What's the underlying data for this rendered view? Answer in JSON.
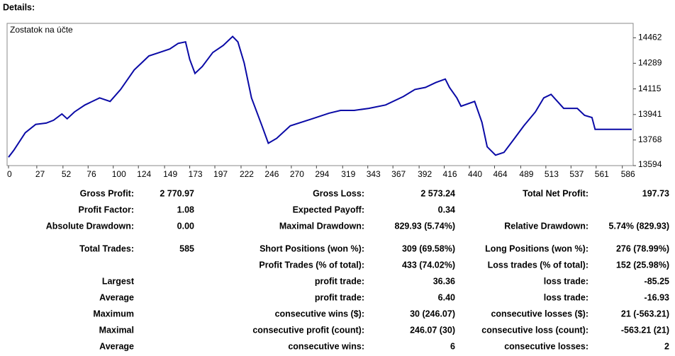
{
  "header": "Details:",
  "chart_data": {
    "type": "line",
    "title": "Zostatok na účte",
    "color": "#0a0aa6",
    "grid": false,
    "x": [
      0,
      5,
      16,
      26,
      36,
      43,
      51,
      56,
      63,
      73,
      87,
      97,
      107,
      120,
      127,
      134,
      144,
      154,
      162,
      169,
      173,
      178,
      185,
      195,
      205,
      214,
      219,
      225,
      232,
      242,
      248,
      256,
      269,
      290,
      306,
      317,
      330,
      344,
      360,
      377,
      388,
      398,
      408,
      417,
      421,
      428,
      432,
      445,
      452,
      457,
      465,
      473,
      482,
      492,
      503,
      511,
      518,
      530,
      543,
      550,
      557,
      560,
      580,
      595
    ],
    "values": [
      13651,
      13698,
      13817,
      13874,
      13883,
      13902,
      13945,
      13912,
      13959,
      14006,
      14054,
      14030,
      14111,
      14244,
      14291,
      14339,
      14362,
      14386,
      14424,
      14434,
      14315,
      14220,
      14267,
      14362,
      14410,
      14471,
      14434,
      14291,
      14054,
      13864,
      13746,
      13779,
      13864,
      13912,
      13950,
      13969,
      13969,
      13983,
      14006,
      14063,
      14111,
      14125,
      14158,
      14182,
      14125,
      14054,
      13997,
      14030,
      13888,
      13722,
      13665,
      13684,
      13769,
      13864,
      13959,
      14054,
      14078,
      13983,
      13983,
      13935,
      13921,
      13840,
      13840,
      13840
    ],
    "xlim": [
      0,
      595
    ],
    "xticks": [
      0,
      27,
      52,
      76,
      100,
      124,
      149,
      173,
      197,
      222,
      246,
      270,
      294,
      319,
      343,
      367,
      392,
      416,
      440,
      464,
      489,
      513,
      537,
      561,
      586
    ],
    "ylim": [
      13594,
      14560
    ],
    "yticks": [
      13594,
      13768,
      13941,
      14115,
      14289,
      14462
    ]
  },
  "table": {
    "rows": [
      {
        "left": [
          "Gross Profit:",
          "2 770.97"
        ],
        "middle": [
          "Gross Loss:",
          "2 573.24"
        ],
        "right": [
          "Total Net Profit:",
          "197.73"
        ]
      },
      {
        "left": [
          "Profit Factor:",
          "1.08"
        ],
        "middle": [
          "Expected Payoff:",
          "0.34"
        ]
      },
      {
        "left": [
          "Absolute Drawdown:",
          "0.00"
        ],
        "middle": [
          "Maximal Drawdown:",
          "829.93 (5.74%)"
        ],
        "right": [
          "Relative Drawdown:",
          "5.74% (829.93)"
        ]
      },
      {
        "left": [
          "Total Trades:",
          "585"
        ],
        "middle": [
          "Short Positions (won %):",
          "309 (69.58%)"
        ],
        "right": [
          "Long Positions (won %):",
          "276 (78.99%)"
        ]
      },
      {
        "middle": [
          "Profit Trades (% of total):",
          "433 (74.02%)"
        ],
        "right": [
          "Loss trades (% of total):",
          "152 (25.98%)"
        ]
      },
      {
        "left": [
          "Largest"
        ],
        "middle": [
          "profit trade:",
          "36.36"
        ],
        "right": [
          "loss trade:",
          "-85.25"
        ]
      },
      {
        "left": [
          "Average"
        ],
        "middle": [
          "profit trade:",
          "6.40"
        ],
        "right": [
          "loss trade:",
          "-16.93"
        ]
      },
      {
        "left": [
          "Maximum"
        ],
        "middle": [
          "consecutive wins ($):",
          "30 (246.07)"
        ],
        "right": [
          "consecutive losses ($):",
          "21 (-563.21)"
        ]
      },
      {
        "left": [
          "Maximal"
        ],
        "middle": [
          "consecutive profit (count):",
          "246.07 (30)"
        ],
        "right": [
          "consecutive loss (count):",
          "-563.21 (21)"
        ]
      },
      {
        "left": [
          "Average"
        ],
        "middle": [
          "consecutive wins:",
          "6"
        ],
        "right": [
          "consecutive losses:",
          "2"
        ]
      }
    ]
  }
}
